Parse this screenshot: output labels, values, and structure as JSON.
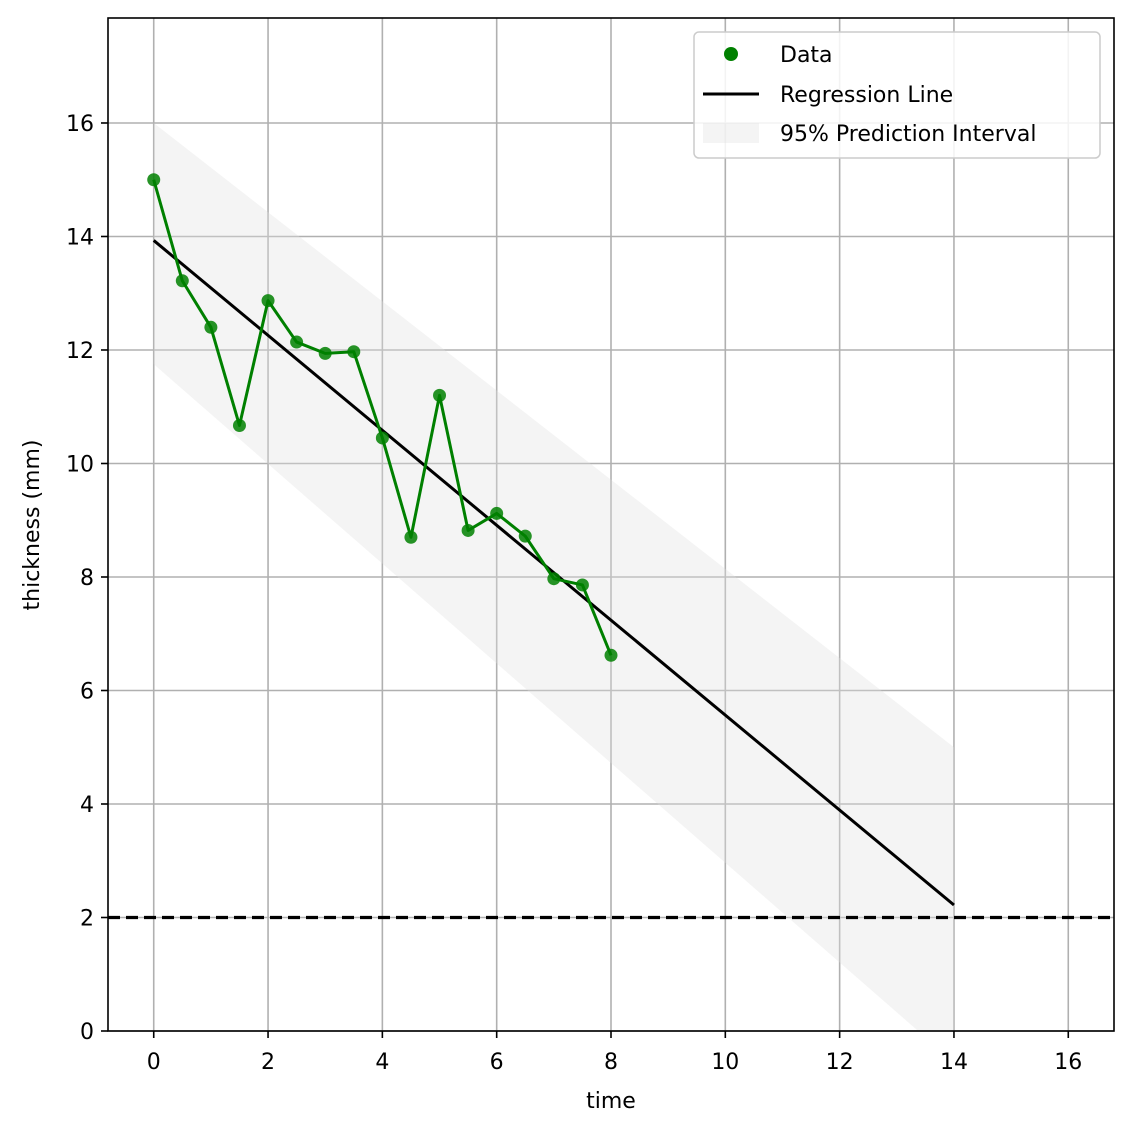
{
  "chart_data": {
    "type": "line",
    "xlabel": "time",
    "ylabel": "thickness (mm)",
    "xlim": [
      -0.8,
      16.8
    ],
    "ylim": [
      0,
      17.85
    ],
    "xticks": [
      0,
      2,
      4,
      6,
      8,
      10,
      12,
      14,
      16
    ],
    "yticks": [
      0,
      2,
      4,
      6,
      8,
      10,
      12,
      14,
      16
    ],
    "grid": true,
    "legend_position": "top-right",
    "series": [
      {
        "name": "Data",
        "kind": "scatter+line",
        "color": "#008000",
        "x": [
          0,
          0.5,
          1,
          1.5,
          2,
          2.5,
          3,
          3.5,
          4,
          4.5,
          5,
          5.5,
          6,
          6.5,
          7,
          7.5,
          8
        ],
        "y": [
          15.0,
          13.22,
          12.4,
          10.67,
          12.87,
          12.14,
          11.94,
          11.97,
          10.45,
          8.7,
          11.2,
          8.82,
          9.12,
          8.72,
          7.97,
          7.86,
          6.62
        ]
      },
      {
        "name": "Regression Line",
        "kind": "line",
        "color": "#000000",
        "x": [
          0,
          14
        ],
        "y": [
          13.93,
          2.22
        ]
      },
      {
        "name": "95% Prediction Interval",
        "kind": "band",
        "color": "#e0e0e0",
        "x": [
          0,
          14
        ],
        "lower": [
          11.75,
          -0.55
        ],
        "upper": [
          16.0,
          5.0
        ]
      }
    ],
    "threshold": {
      "y": 2,
      "style": "dashed",
      "color": "#000000"
    }
  },
  "legend": {
    "data_label": "Data",
    "regression_label": "Regression Line",
    "interval_label": "95% Prediction Interval"
  },
  "axes": {
    "xlabel": "time",
    "ylabel": "thickness (mm)"
  }
}
